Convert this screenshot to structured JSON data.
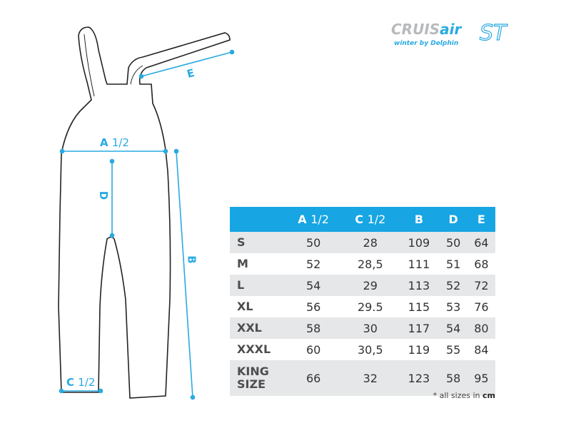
{
  "logo": {
    "text1": "CRUIS",
    "text1b": "air",
    "text2": "winter by Delphin",
    "text3": "ST"
  },
  "diagram_labels": {
    "a": "A",
    "a_frac": "1/2",
    "b": "B",
    "c": "C",
    "c_frac": "1/2",
    "d": "D",
    "e": "E"
  },
  "colors": {
    "accent": "#29aae1",
    "header": "#17a5e3",
    "row_alt": "#e6e7e8"
  },
  "table": {
    "headers": [
      {
        "letter": "",
        "frac": ""
      },
      {
        "letter": "A",
        "frac": "1/2"
      },
      {
        "letter": "C",
        "frac": "1/2"
      },
      {
        "letter": "B",
        "frac": ""
      },
      {
        "letter": "D",
        "frac": ""
      },
      {
        "letter": "E",
        "frac": ""
      }
    ],
    "rows": [
      {
        "size": "S",
        "values": [
          "50",
          "28",
          "109",
          "50",
          "64"
        ]
      },
      {
        "size": "M",
        "values": [
          "52",
          "28,5",
          "111",
          "51",
          "68"
        ]
      },
      {
        "size": "L",
        "values": [
          "54",
          "29",
          "113",
          "52",
          "72"
        ]
      },
      {
        "size": "XL",
        "values": [
          "56",
          "29.5",
          "115",
          "53",
          "76"
        ]
      },
      {
        "size": "XXL",
        "values": [
          "58",
          "30",
          "117",
          "54",
          "80"
        ]
      },
      {
        "size": "XXXL",
        "values": [
          "60",
          "30,5",
          "119",
          "55",
          "84"
        ]
      },
      {
        "size": "KING SIZE",
        "values": [
          "66",
          "32",
          "123",
          "58",
          "95"
        ]
      }
    ]
  },
  "note": {
    "text": "* all sizes in ",
    "unit": "cm"
  }
}
